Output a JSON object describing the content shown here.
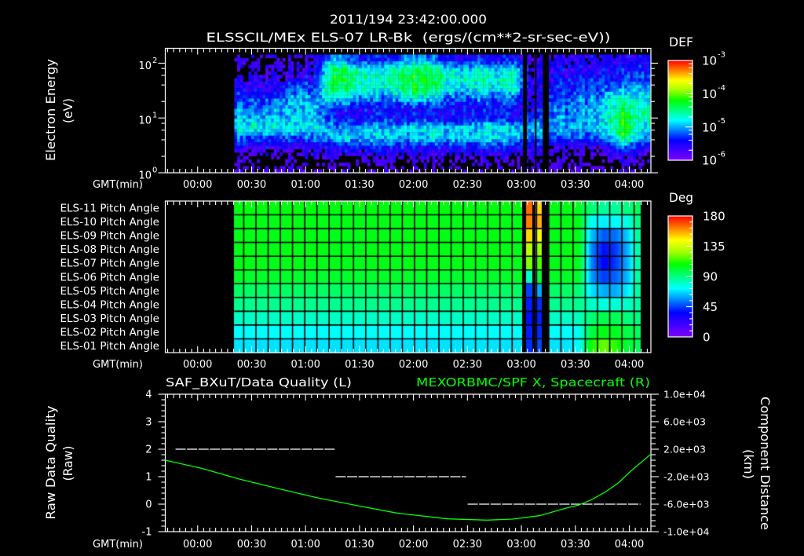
{
  "header": {
    "timestamp": "2011/194 23:42:00.000"
  },
  "time_axis": {
    "start_gmt": "23:42",
    "end_gmt": "04:12",
    "span_min": 270,
    "label": "GMT(min)",
    "minor_per_major": 9,
    "ticks": [
      {
        "t": 18,
        "label": "00:00"
      },
      {
        "t": 48,
        "label": "00:30"
      },
      {
        "t": 78,
        "label": "01:00"
      },
      {
        "t": 108,
        "label": "01:30"
      },
      {
        "t": 138,
        "label": "02:00"
      },
      {
        "t": 168,
        "label": "02:30"
      },
      {
        "t": 198,
        "label": "03:00"
      },
      {
        "t": 228,
        "label": "03:30"
      },
      {
        "t": 258,
        "label": "04:00"
      }
    ]
  },
  "colors": {
    "background": "#000000",
    "axis": "#ffffff",
    "spacecraft_line": "#00ff00",
    "quality_line": "#ffffff",
    "colormap": [
      [
        0,
        "#8000ff"
      ],
      [
        0.1,
        "#4000ff"
      ],
      [
        0.2,
        "#0000ff"
      ],
      [
        0.3,
        "#0080ff"
      ],
      [
        0.4,
        "#00ffff"
      ],
      [
        0.5,
        "#00ff80"
      ],
      [
        0.6,
        "#00ff00"
      ],
      [
        0.7,
        "#a0ff00"
      ],
      [
        0.8,
        "#ffff00"
      ],
      [
        0.9,
        "#ff8000"
      ],
      [
        1,
        "#ff0000"
      ]
    ]
  },
  "chart_data": [
    {
      "type": "heatmap",
      "subtype": "spectrogram",
      "title": "ELSSCIL/MEx ELS-07 LR-Bk  (ergs/(cm**2-sr-sec-eV))",
      "xlabel": "GMT(min)",
      "ylabel": "Electron Energy",
      "yunits": "(eV)",
      "yscale": "log",
      "ylim": [
        1,
        187
      ],
      "yticks": [
        {
          "value": 100,
          "base": "10",
          "exp": "2"
        },
        {
          "value": 10,
          "base": "10",
          "exp": "1"
        },
        {
          "value": 1,
          "base": "10",
          "exp": "0"
        }
      ],
      "xticks": [
        {
          "t": 18,
          "label": "00:00"
        },
        {
          "t": 48,
          "label": "00:30"
        },
        {
          "t": 78,
          "label": "01:00"
        },
        {
          "t": 108,
          "label": "01:30"
        },
        {
          "t": 138,
          "label": "02:00"
        },
        {
          "t": 168,
          "label": "02:30"
        },
        {
          "t": 198,
          "label": "03:00"
        },
        {
          "t": 228,
          "label": "03:30"
        },
        {
          "t": 258,
          "label": "04:00"
        }
      ],
      "colorbar": {
        "label": "DEF",
        "scale": "log",
        "range": [
          1e-06,
          0.001
        ],
        "ticks": [
          {
            "value": 0.001,
            "base": "10",
            "exp": "-3"
          },
          {
            "value": 0.0001,
            "base": "10",
            "exp": "-4"
          },
          {
            "value": 1e-05,
            "base": "10",
            "exp": "-5"
          },
          {
            "value": 1e-06,
            "base": "10",
            "exp": "-6"
          }
        ]
      },
      "time_min": {
        "start": 38.4,
        "end": 269.6,
        "start_gmt": "00:20",
        "end_gmt": "04:12"
      },
      "energy_log10": {
        "min": 0,
        "max": 2.157
      },
      "gaps_min": [
        [
          198.9,
          201.1
        ],
        [
          205.5,
          206.4
        ],
        [
          209.9,
          213.3
        ]
      ],
      "log10_def": [
        [
          -5.85,
          -5.85,
          -5.85,
          -5.8,
          -5.7,
          -4.95,
          -5.2,
          -5.4,
          -5.45,
          -5.0,
          -5.05,
          -5.3,
          -5.55,
          -5.35,
          -5.6,
          -5.35,
          -5.8,
          -5.7,
          -5.65,
          -5.6,
          -5.6,
          -5.5,
          -5.5
        ],
        [
          -5.8,
          -5.8,
          -5.8,
          -5.7,
          -5.6,
          -4.35,
          -4.6,
          -4.8,
          -4.85,
          -4.4,
          -4.45,
          -4.7,
          -4.95,
          -4.75,
          -5.0,
          -4.75,
          -5.8,
          -5.6,
          -5.55,
          -5.5,
          -5.5,
          -5.4,
          -5.35
        ],
        [
          -5.7,
          -5.7,
          -5.7,
          -5.5,
          -5.5,
          -4.2,
          -4.45,
          -4.65,
          -4.7,
          -4.25,
          -4.3,
          -4.55,
          -4.8,
          -4.6,
          -4.85,
          -4.6,
          -5.8,
          -5.5,
          -5.45,
          -5.4,
          -5.4,
          -5.3,
          -5.2
        ],
        [
          -5.55,
          -5.55,
          -5.5,
          -5.1,
          -5.3,
          -4.3,
          -4.55,
          -4.75,
          -4.8,
          -4.35,
          -4.4,
          -4.65,
          -4.9,
          -4.7,
          -4.95,
          -4.7,
          -5.8,
          -5.4,
          -5.35,
          -5.3,
          -5.2,
          -5.05,
          -5.0
        ],
        [
          -5.3,
          -5.3,
          -5.25,
          -4.9,
          -5.1,
          -4.7,
          -4.95,
          -5.15,
          -5.2,
          -4.75,
          -4.8,
          -5.05,
          -5.3,
          -5.1,
          -5.35,
          -5.1,
          -5.75,
          -5.3,
          -5.2,
          -5.15,
          -5.0,
          -4.6,
          -4.8
        ],
        [
          -5.1,
          -5.1,
          -5.05,
          -4.9,
          -5.0,
          -5.45,
          -5.45,
          -5.45,
          -5.45,
          -5.45,
          -5.45,
          -5.45,
          -5.45,
          -5.45,
          -5.45,
          -5.45,
          -5.7,
          -5.2,
          -5.1,
          -5.0,
          -4.9,
          -4.3,
          -4.6
        ],
        [
          -4.95,
          -4.95,
          -4.95,
          -4.9,
          -4.95,
          -5.4,
          -5.4,
          -5.4,
          -5.4,
          -5.4,
          -5.4,
          -5.4,
          -5.4,
          -5.4,
          -5.4,
          -5.4,
          -5.3,
          -5.1,
          -5.05,
          -4.95,
          -4.85,
          -4.15,
          -4.65
        ],
        [
          -4.75,
          -4.75,
          -4.75,
          -4.75,
          -4.8,
          -5.0,
          -5.0,
          -5.0,
          -5.0,
          -4.85,
          -4.85,
          -4.85,
          -4.85,
          -4.85,
          -4.85,
          -4.85,
          -5.0,
          -5.05,
          -5.0,
          -4.95,
          -4.9,
          -4.15,
          -4.8
        ],
        [
          -5.25,
          -5.25,
          -5.25,
          -5.25,
          -5.2,
          -4.9,
          -4.9,
          -4.9,
          -4.9,
          -4.9,
          -4.9,
          -4.9,
          -4.9,
          -4.9,
          -4.9,
          -4.9,
          -5.2,
          -5.3,
          -5.3,
          -5.25,
          -5.2,
          -4.35,
          -5.0
        ],
        [
          -5.65,
          -5.65,
          -5.65,
          -5.65,
          -5.6,
          -5.45,
          -5.45,
          -5.45,
          -5.45,
          -5.45,
          -5.45,
          -5.45,
          -5.45,
          -5.45,
          -5.45,
          -5.45,
          -5.6,
          -5.7,
          -5.7,
          -5.7,
          -5.65,
          -5.0,
          -5.5
        ],
        [
          -5.9,
          -5.9,
          -5.9,
          -5.9,
          -5.9,
          -5.85,
          -5.85,
          -5.85,
          -5.85,
          -5.85,
          -5.85,
          -5.85,
          -5.85,
          -5.85,
          -5.85,
          -5.85,
          -5.8,
          -5.9,
          -5.9,
          -5.95,
          -5.9,
          -5.6,
          -5.85
        ],
        [
          -5.95,
          -5.95,
          -5.95,
          -5.95,
          -5.95,
          -5.95,
          -5.95,
          -5.95,
          -5.95,
          -5.95,
          -5.95,
          -5.95,
          -5.95,
          -5.95,
          -5.95,
          -5.95,
          -5.9,
          -5.95,
          -5.95,
          -6.0,
          -5.95,
          -5.8,
          -5.95
        ]
      ]
    },
    {
      "type": "heatmap",
      "subtype": "pitch_angle",
      "row_labels": [
        "ELS-11 Pitch Angle",
        "ELS-10 Pitch Angle",
        "ELS-09 Pitch Angle",
        "ELS-08 Pitch Angle",
        "ELS-07 Pitch Angle",
        "ELS-06 Pitch Angle",
        "ELS-05 Pitch Angle",
        "ELS-04 Pitch Angle",
        "ELS-03 Pitch Angle",
        "ELS-02 Pitch Angle",
        "ELS-01 Pitch Angle"
      ],
      "xlabel": "GMT(min)",
      "xticks": [
        {
          "t": 18,
          "label": "00:00"
        },
        {
          "t": 48,
          "label": "00:30"
        },
        {
          "t": 78,
          "label": "01:00"
        },
        {
          "t": 108,
          "label": "01:30"
        },
        {
          "t": 138,
          "label": "02:00"
        },
        {
          "t": 168,
          "label": "02:30"
        },
        {
          "t": 198,
          "label": "03:00"
        },
        {
          "t": 228,
          "label": "03:30"
        },
        {
          "t": 258,
          "label": "04:00"
        }
      ],
      "colorbar": {
        "label": "Deg",
        "range": [
          0,
          180
        ],
        "ticks": [
          {
            "value": 180,
            "label": "180"
          },
          {
            "value": 135,
            "label": "135"
          },
          {
            "value": 90,
            "label": "90"
          },
          {
            "value": 45,
            "label": "45"
          },
          {
            "value": 0,
            "label": "0"
          }
        ]
      },
      "grid": {
        "t0": 43.62,
        "dt": 6.783
      },
      "segments": [
        {
          "t": [
            38.38,
            198.46
          ],
          "deg": [
            106,
            105,
            105,
            105,
            105,
            102,
            94,
            88,
            80,
            72,
            68
          ],
          "blend": false
        },
        {
          "t": [
            198.46,
            200.64
          ],
          "deg": null
        },
        {
          "t": [
            200.64,
            203.95
          ],
          "deg": [
            165,
            162,
            150,
            130,
            122,
            80,
            45,
            40,
            38,
            40,
            42
          ],
          "blend": false
        },
        {
          "t": [
            203.95,
            205.74
          ],
          "deg": null
        },
        {
          "t": [
            205.74,
            209.37
          ],
          "deg": [
            150,
            155,
            142,
            126,
            116,
            100,
            60,
            42,
            40,
            42,
            46
          ],
          "blend": false
        },
        {
          "t": [
            209.37,
            213.3
          ],
          "deg": null
        },
        {
          "t": [
            213.3,
            219.97
          ],
          "deg": [
            105,
            105,
            105,
            105,
            105,
            103,
            94,
            88,
            80,
            72,
            68
          ],
          "blend": true
        },
        {
          "t": [
            219.97,
            226.82
          ],
          "deg": [
            105,
            105,
            105,
            105,
            105,
            103,
            94,
            88,
            80,
            72,
            68
          ],
          "blend": true
        },
        {
          "t": [
            226.82,
            233.66
          ],
          "deg": [
            103,
            105,
            105,
            105,
            104,
            102,
            92,
            88,
            82,
            74,
            72
          ],
          "blend": true
        },
        {
          "t": [
            233.66,
            240.34
          ],
          "deg": [
            92,
            72,
            63,
            55,
            55,
            58,
            68,
            80,
            92,
            100,
            110
          ],
          "blend": true
        },
        {
          "t": [
            240.34,
            247.19
          ],
          "deg": [
            86,
            70,
            48,
            37,
            34,
            44,
            60,
            76,
            98,
            106,
            120
          ],
          "blend": true
        },
        {
          "t": [
            247.19,
            253.99
          ],
          "deg": [
            86,
            72,
            52,
            44,
            44,
            50,
            60,
            78,
            96,
            104,
            112
          ],
          "blend": true
        },
        {
          "t": [
            253.99,
            260.71
          ],
          "deg": [
            90,
            76,
            66,
            62,
            62,
            63,
            70,
            80,
            90,
            98,
            100
          ],
          "blend": true
        },
        {
          "t": [
            260.71,
            264.33
          ],
          "deg": [
            96,
            90,
            86,
            85,
            85,
            86,
            86,
            85,
            90,
            95,
            96
          ],
          "blend": true
        }
      ]
    },
    {
      "type": "line",
      "left_title": "SAF_BXuT/Data Quality (L)",
      "right_title": "MEXORBMC/SPF X, Spacecraft (R)",
      "ylabel_left": "Raw Data Quality",
      "yunits_left": "(Raw)",
      "ylabel_right": "Component Distance",
      "yunits_right": "(km)",
      "xlabel": "GMT(min)",
      "xticks": [
        {
          "t": 18,
          "label": "00:00"
        },
        {
          "t": 48,
          "label": "00:30"
        },
        {
          "t": 78,
          "label": "01:00"
        },
        {
          "t": 108,
          "label": "01:30"
        },
        {
          "t": 138,
          "label": "02:00"
        },
        {
          "t": 168,
          "label": "02:30"
        },
        {
          "t": 198,
          "label": "03:00"
        },
        {
          "t": 228,
          "label": "03:30"
        },
        {
          "t": 258,
          "label": "04:00"
        }
      ],
      "ylim_left": [
        -1,
        4
      ],
      "ylim_right": [
        -10000,
        10000
      ],
      "yticks_left": [
        {
          "value": 4,
          "label": "4"
        },
        {
          "value": 3,
          "label": "3"
        },
        {
          "value": 2,
          "label": "2"
        },
        {
          "value": 1,
          "label": "1"
        },
        {
          "value": 0,
          "label": "0"
        },
        {
          "value": -1,
          "label": "-1"
        }
      ],
      "yticks_right": [
        {
          "value": 10000,
          "label": "1.0e+04"
        },
        {
          "value": 6000,
          "label": "6.0e+03"
        },
        {
          "value": 2000,
          "label": "2.0e+03"
        },
        {
          "value": -2000,
          "label": "-2.0e+03"
        },
        {
          "value": -6000,
          "label": "-6.0e+03"
        },
        {
          "value": -10000,
          "label": "-1.0e+04"
        }
      ],
      "series": [
        {
          "name": "Data Quality (Raw)",
          "axis": "left",
          "style": "dashed",
          "color": "#ffffff",
          "segments": [
            {
              "t": [
                5.7,
                94.2
              ],
              "value": 2
            },
            {
              "t": [
                94.7,
                167.2
              ],
              "value": 1
            },
            {
              "t": [
                168.1,
                264.2
              ],
              "value": 0
            }
          ]
        },
        {
          "name": "SPF X, Spacecraft (km)",
          "axis": "right",
          "style": "solid",
          "color": "#00ff00",
          "points": [
            [
              0,
              400
            ],
            [
              20,
              -780
            ],
            [
              41.4,
              -2350
            ],
            [
              63,
              -3750
            ],
            [
              85.1,
              -5100
            ],
            [
              107,
              -6230
            ],
            [
              128.7,
              -7290
            ],
            [
              157,
              -8140
            ],
            [
              178.8,
              -8320
            ],
            [
              193.2,
              -8170
            ],
            [
              208,
              -7680
            ],
            [
              222.5,
              -6610
            ],
            [
              229.7,
              -6150
            ],
            [
              237,
              -5350
            ],
            [
              244.3,
              -4290
            ],
            [
              251.5,
              -2990
            ],
            [
              258.8,
              -1200
            ],
            [
              266.1,
              430
            ],
            [
              270,
              1280
            ]
          ]
        }
      ]
    }
  ]
}
